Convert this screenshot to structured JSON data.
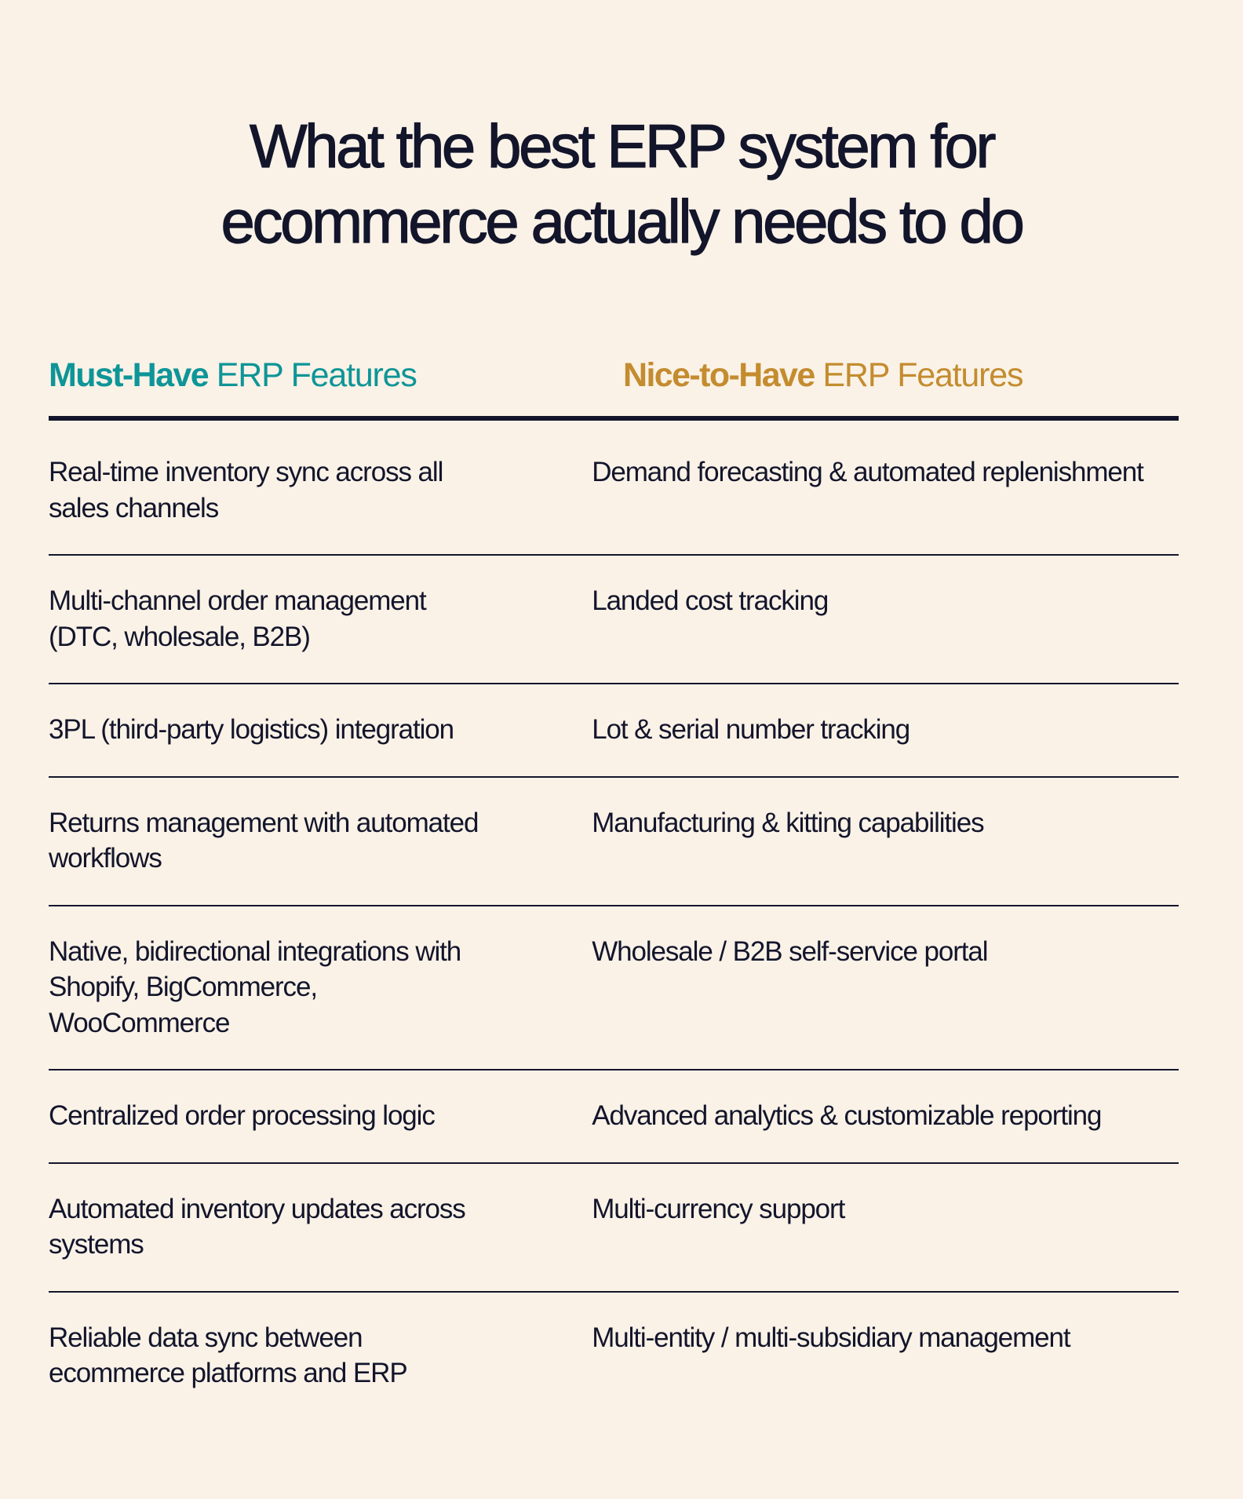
{
  "title": {
    "line1": "What the best ERP system for",
    "line2": "ecommerce actually needs to do"
  },
  "colors": {
    "background": "#faf2e7",
    "text": "#13152b",
    "must_have_accent": "#0e9597",
    "nice_to_have_accent": "#c48c2f"
  },
  "table": {
    "headers": {
      "left": {
        "strong": "Must-Have",
        "rest": " ERP Features"
      },
      "right": {
        "strong": "Nice-to-Have",
        "rest": " ERP Features"
      }
    },
    "rows": [
      {
        "must_have": "Real-time inventory sync across all sales channels",
        "nice_to_have": "Demand forecasting & automated replenishment"
      },
      {
        "must_have": "Multi-channel order management (DTC, wholesale, B2B)",
        "nice_to_have": "Landed cost tracking"
      },
      {
        "must_have": "3PL (third-party logistics) integration",
        "nice_to_have": "Lot & serial number tracking"
      },
      {
        "must_have": "Returns management with automated workflows",
        "nice_to_have": "Manufacturing & kitting capabilities"
      },
      {
        "must_have": "Native, bidirectional integrations with Shopify, BigCommerce, WooCommerce",
        "nice_to_have": "Wholesale / B2B self-service portal"
      },
      {
        "must_have": "Centralized order processing logic",
        "nice_to_have": "Advanced analytics & customizable reporting"
      },
      {
        "must_have": "Automated inventory updates across systems",
        "nice_to_have": "Multi-currency support"
      },
      {
        "must_have": "Reliable data sync between ecommerce platforms and ERP",
        "nice_to_have": "Multi-entity / multi-subsidiary management"
      }
    ]
  }
}
